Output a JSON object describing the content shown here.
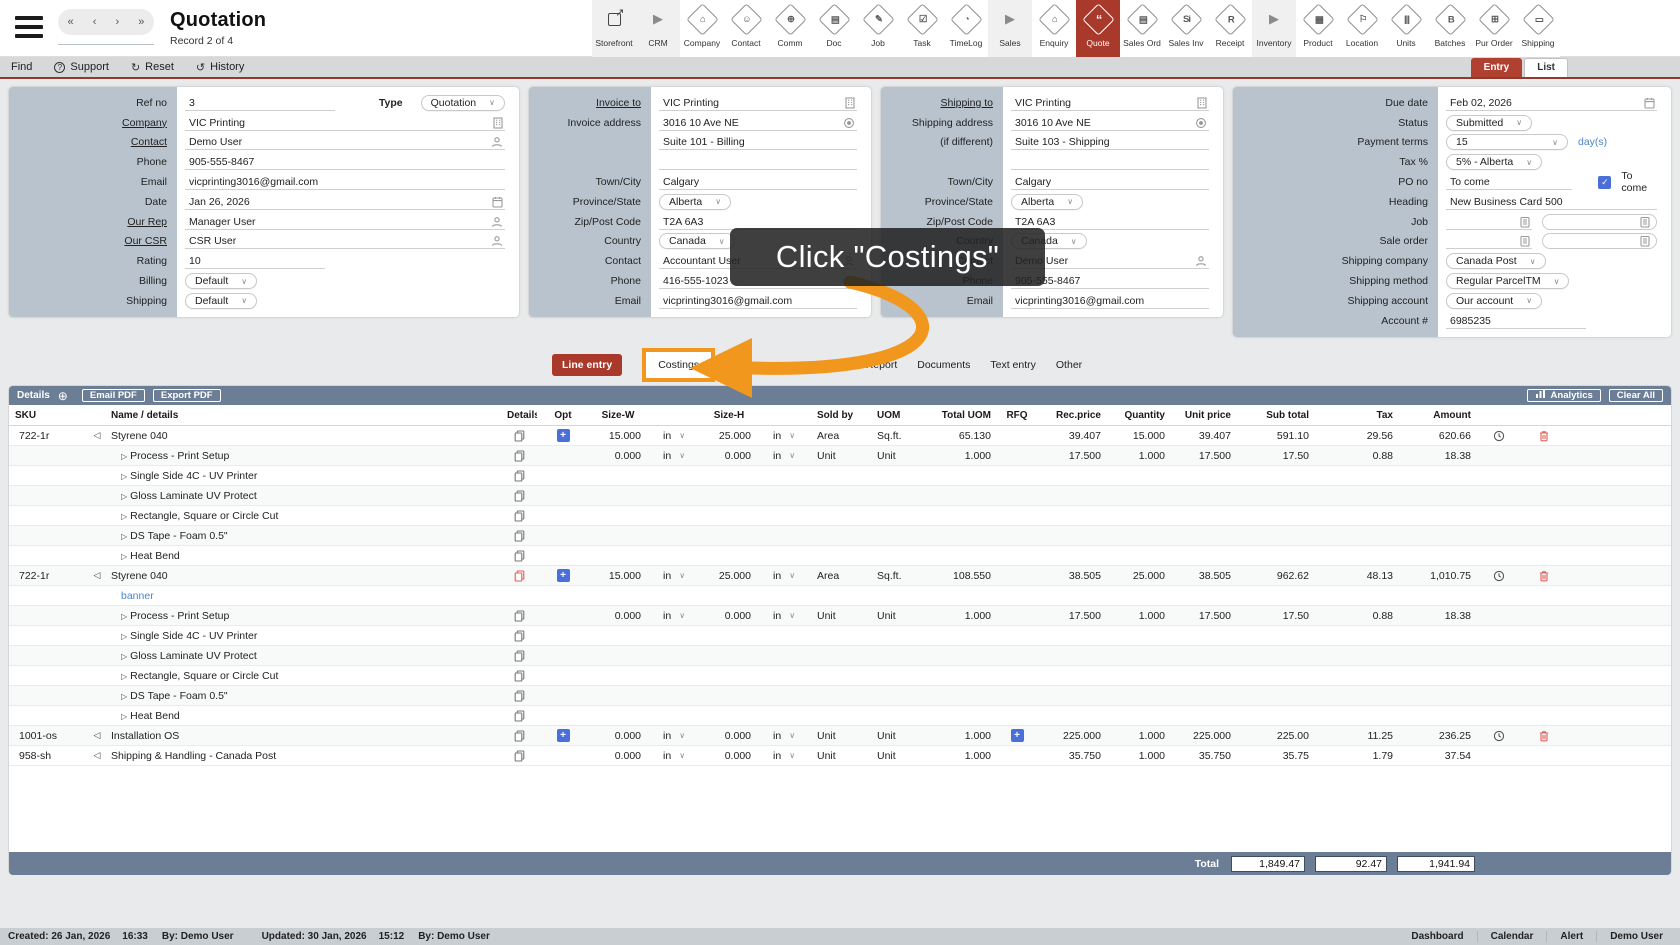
{
  "colors": {
    "accent": "#a8392b",
    "orange": "#f2971e",
    "blue_button": "#4a6fd8",
    "link_blue": "#4a86c8",
    "label_column_bg": "#b9c3cd",
    "bar_bg": "#6b7e95"
  },
  "header": {
    "title": "Quotation",
    "record": "Record 2 of 4",
    "nav_buttons": [
      "«",
      "‹",
      "›",
      "»"
    ],
    "toolbar": [
      {
        "label": "Storefront",
        "glyph": "↗",
        "style": "plain",
        "bg": "gray"
      },
      {
        "label": "CRM",
        "glyph": "▶",
        "style": "arrow",
        "bg": "gray"
      },
      {
        "label": "Company",
        "glyph": "⌂",
        "style": "diamond"
      },
      {
        "label": "Contact",
        "glyph": "☺",
        "style": "diamond"
      },
      {
        "label": "Comm",
        "glyph": "⊕",
        "style": "diamond"
      },
      {
        "label": "Doc",
        "glyph": "▤",
        "style": "diamond"
      },
      {
        "label": "Job",
        "glyph": "✎",
        "style": "diamond"
      },
      {
        "label": "Task",
        "glyph": "☑",
        "style": "diamond"
      },
      {
        "label": "TimeLog",
        "glyph": "◔",
        "style": "diamond"
      },
      {
        "label": "Sales",
        "glyph": "▶",
        "style": "arrow",
        "bg": "gray"
      },
      {
        "label": "Enquiry",
        "glyph": "⌂",
        "style": "diamond"
      },
      {
        "label": "Quote",
        "glyph": "“",
        "style": "diamond",
        "selected": true
      },
      {
        "label": "Sales Ord",
        "glyph": "▤",
        "style": "diamond"
      },
      {
        "label": "Sales Inv",
        "glyph": "Si",
        "style": "diamond"
      },
      {
        "label": "Receipt",
        "glyph": "R",
        "style": "diamond"
      },
      {
        "label": "Inventory",
        "glyph": "▶",
        "style": "arrow",
        "bg": "gray"
      },
      {
        "label": "Product",
        "glyph": "▦",
        "style": "diamond"
      },
      {
        "label": "Location",
        "glyph": "⚐",
        "style": "diamond"
      },
      {
        "label": "Units",
        "glyph": "|||",
        "style": "diamond"
      },
      {
        "label": "Batches",
        "glyph": "B",
        "style": "diamond"
      },
      {
        "label": "Pur Order",
        "glyph": "⊞",
        "style": "diamond"
      },
      {
        "label": "Shipping",
        "glyph": "▭",
        "style": "diamond"
      }
    ]
  },
  "menubar": {
    "items": [
      {
        "label": "Find"
      },
      {
        "label": "Support",
        "icon": "?"
      },
      {
        "label": "Reset",
        "icon": "↻"
      },
      {
        "label": "History",
        "icon": "↺"
      }
    ],
    "view_tabs": [
      {
        "label": "Entry",
        "active": true
      },
      {
        "label": "List"
      }
    ]
  },
  "form": {
    "panels": [
      {
        "name": "general",
        "rows": [
          {
            "kind": "refno",
            "label": "Ref no",
            "value": "3",
            "type_label": "Type",
            "type_value": "Quotation"
          },
          {
            "kind": "text",
            "label": "Company",
            "link": true,
            "value": "VIC Printing",
            "icon": "building"
          },
          {
            "kind": "text",
            "label": "Contact",
            "link": true,
            "value": "Demo User",
            "icon": "person"
          },
          {
            "kind": "text",
            "label": "Phone",
            "value": "905-555-8467"
          },
          {
            "kind": "text",
            "label": "Email",
            "value": "vicprinting3016@gmail.com"
          },
          {
            "kind": "text",
            "label": "Date",
            "value": "Jan 26, 2026",
            "icon": "calendar"
          },
          {
            "kind": "text",
            "label": "Our Rep",
            "link": true,
            "value": "Manager User",
            "icon": "person"
          },
          {
            "kind": "text",
            "label": "Our CSR",
            "link": true,
            "value": "CSR User",
            "icon": "person"
          },
          {
            "kind": "text",
            "label": "Rating",
            "value": "10",
            "short": true
          },
          {
            "kind": "select",
            "label": "Billing",
            "value": "Default"
          },
          {
            "kind": "select",
            "label": "Shipping",
            "value": "Default"
          }
        ]
      },
      {
        "name": "invoice-to",
        "rows": [
          {
            "kind": "text",
            "label": "Invoice to",
            "link": true,
            "value": "VIC Printing",
            "icon": "building"
          },
          {
            "kind": "text",
            "label": "Invoice address",
            "value": "3016 10 Ave NE",
            "icon": "pin"
          },
          {
            "kind": "text",
            "label": "",
            "value": "Suite 101 - Billing"
          },
          {
            "kind": "text",
            "label": "",
            "value": ""
          },
          {
            "kind": "text",
            "label": "Town/City",
            "value": "Calgary"
          },
          {
            "kind": "select",
            "label": "Province/State",
            "value": "Alberta"
          },
          {
            "kind": "text",
            "label": "Zip/Post Code",
            "value": "T2A 6A3"
          },
          {
            "kind": "select",
            "label": "Country",
            "value": "Canada"
          },
          {
            "kind": "text",
            "label": "Contact",
            "value": "Accountant User",
            "icon": "person"
          },
          {
            "kind": "text",
            "label": "Phone",
            "value": "416-555-1023"
          },
          {
            "kind": "text",
            "label": "Email",
            "value": "vicprinting3016@gmail.com"
          }
        ]
      },
      {
        "name": "ship-to",
        "rows": [
          {
            "kind": "text",
            "label": "Shipping to",
            "link": true,
            "value": "VIC Printing",
            "icon": "building"
          },
          {
            "kind": "text",
            "label": "Shipping address",
            "value": "3016 10 Ave NE",
            "icon": "pin"
          },
          {
            "kind": "text",
            "label": "(if different)",
            "value": "Suite 103 - Shipping"
          },
          {
            "kind": "text",
            "label": "",
            "value": ""
          },
          {
            "kind": "text",
            "label": "Town/City",
            "value": "Calgary"
          },
          {
            "kind": "select",
            "label": "Province/State",
            "value": "Alberta"
          },
          {
            "kind": "text",
            "label": "Zip/Post Code",
            "value": "T2A 6A3"
          },
          {
            "kind": "select",
            "label": "Country",
            "value": "Canada"
          },
          {
            "kind": "text",
            "label": "Contact",
            "value": "Demo User",
            "icon": "person"
          },
          {
            "kind": "text",
            "label": "Phone",
            "value": "905-555-8467"
          },
          {
            "kind": "text",
            "label": "Email",
            "value": "vicprinting3016@gmail.com"
          }
        ]
      },
      {
        "name": "terms",
        "rows": [
          {
            "kind": "text",
            "label": "Due date",
            "value": "Feb 02, 2026",
            "icon": "calendar"
          },
          {
            "kind": "select",
            "label": "Status",
            "value": "Submitted"
          },
          {
            "kind": "select",
            "label": "Payment terms",
            "value": "15",
            "wide": true,
            "suffix": "day(s)"
          },
          {
            "kind": "select",
            "label": "Tax %",
            "value": "5% - Alberta"
          },
          {
            "kind": "check",
            "label": "PO no",
            "value": "To come",
            "check_label": "To come",
            "checked": true
          },
          {
            "kind": "text",
            "label": "Heading",
            "value": "New Business Card 500"
          },
          {
            "kind": "double",
            "label": "Job",
            "value": "",
            "icon": "notepad"
          },
          {
            "kind": "double",
            "label": "Sale order",
            "value": "",
            "icon": "notepad"
          },
          {
            "kind": "select",
            "label": "Shipping company",
            "value": "Canada Post"
          },
          {
            "kind": "select",
            "label": "Shipping method",
            "value": "Regular ParcelTM"
          },
          {
            "kind": "select",
            "label": "Shipping account",
            "value": "Our account"
          },
          {
            "kind": "text",
            "label": "Account #",
            "value": "6985235",
            "short": true
          }
        ]
      }
    ]
  },
  "tabs": [
    {
      "label": "Line entry",
      "active": true
    },
    {
      "label": "Costings",
      "highlight": true
    },
    {
      "label": "Wo",
      "obscured": true
    },
    {
      "label": "Production Report"
    },
    {
      "label": "Documents"
    },
    {
      "label": "Text entry"
    },
    {
      "label": "Other"
    }
  ],
  "annotation": {
    "text": "Click \"Costings\""
  },
  "table": {
    "toolbar": {
      "details": "Details",
      "email_pdf": "Email PDF",
      "export_pdf": "Export PDF",
      "analytics": "Analytics",
      "clear_all": "Clear All"
    },
    "columns": [
      "SKU",
      "Name / details",
      "Details",
      "Opt",
      "Size-W",
      "Size-H",
      "Sold by",
      "UOM",
      "Total UOM",
      "RFQ",
      "Rec.price",
      "Quantity",
      "Unit price",
      "Sub total",
      "Tax",
      "Amount"
    ],
    "unit_label": "in",
    "rows": [
      {
        "sku": "722-1r",
        "expand": true,
        "name": "Styrene 040",
        "copy": "gray",
        "opt": true,
        "size_w": "15.000",
        "size_h": "25.000",
        "sold_by": "Area",
        "uom": "Sq.ft.",
        "total_uom": "65.130",
        "rec_price": "39.407",
        "quantity": "15.000",
        "unit_price": "39.407",
        "sub_total": "591.10",
        "tax": "29.56",
        "amount": "620.66",
        "clock": true,
        "trash": true
      },
      {
        "child": true,
        "name": "Process - Print Setup",
        "copy": "gray",
        "size_w": "0.000",
        "size_h": "0.000",
        "sold_by": "Unit",
        "uom": "Unit",
        "total_uom": "1.000",
        "rec_price": "17.500",
        "quantity": "1.000",
        "unit_price": "17.500",
        "sub_total": "17.50",
        "tax": "0.88",
        "amount": "18.38"
      },
      {
        "child": true,
        "name": "Single Side 4C - UV Printer",
        "copy": "gray"
      },
      {
        "child": true,
        "name": "Gloss Laminate UV Protect",
        "copy": "gray"
      },
      {
        "child": true,
        "name": "Rectangle, Square or Circle Cut",
        "copy": "gray"
      },
      {
        "child": true,
        "name": "DS Tape - Foam 0.5\"",
        "copy": "gray"
      },
      {
        "child": true,
        "name": "Heat Bend",
        "copy": "gray"
      },
      {
        "sku": "722-1r",
        "expand": true,
        "name": "Styrene 040",
        "copy": "red",
        "opt": true,
        "size_w": "15.000",
        "size_h": "25.000",
        "sold_by": "Area",
        "uom": "Sq.ft.",
        "total_uom": "108.550",
        "rec_price": "38.505",
        "quantity": "25.000",
        "unit_price": "38.505",
        "sub_total": "962.62",
        "tax": "48.13",
        "amount": "1,010.75",
        "clock": true,
        "trash": true
      },
      {
        "note": true,
        "name": "banner"
      },
      {
        "child": true,
        "name": "Process - Print Setup",
        "copy": "gray",
        "size_w": "0.000",
        "size_h": "0.000",
        "sold_by": "Unit",
        "uom": "Unit",
        "total_uom": "1.000",
        "rec_price": "17.500",
        "quantity": "1.000",
        "unit_price": "17.500",
        "sub_total": "17.50",
        "tax": "0.88",
        "amount": "18.38"
      },
      {
        "child": true,
        "name": "Single Side 4C - UV Printer",
        "copy": "gray"
      },
      {
        "child": true,
        "name": "Gloss Laminate UV Protect",
        "copy": "gray"
      },
      {
        "child": true,
        "name": "Rectangle, Square or Circle Cut",
        "copy": "gray"
      },
      {
        "child": true,
        "name": "DS Tape - Foam 0.5\"",
        "copy": "gray"
      },
      {
        "child": true,
        "name": "Heat Bend",
        "copy": "gray"
      },
      {
        "sku": "1001-os",
        "expand": true,
        "name": "Installation OS",
        "copy": "gray",
        "opt": true,
        "size_w": "0.000",
        "size_h": "0.000",
        "sold_by": "Unit",
        "uom": "Unit",
        "total_uom": "1.000",
        "rfq": true,
        "rec_price": "225.000",
        "quantity": "1.000",
        "unit_price": "225.000",
        "sub_total": "225.00",
        "tax": "11.25",
        "amount": "236.25",
        "clock": true,
        "trash": true
      },
      {
        "sku": "958-sh",
        "expand": true,
        "name": "Shipping & Handling - Canada Post",
        "copy": "gray",
        "size_w": "0.000",
        "size_h": "0.000",
        "sold_by": "Unit",
        "uom": "Unit",
        "total_uom": "1.000",
        "rec_price": "35.750",
        "quantity": "1.000",
        "unit_price": "35.750",
        "sub_total": "35.75",
        "tax": "1.79",
        "amount": "37.54"
      }
    ],
    "totals": {
      "label": "Total",
      "sub_total": "1,849.47",
      "tax": "92.47",
      "amount": "1,941.94"
    }
  },
  "footer": {
    "left": [
      "Created: 26 Jan, 2026",
      "16:33",
      "By: Demo User",
      "Updated: 30 Jan, 2026",
      "15:12",
      "By: Demo User"
    ],
    "right": [
      "Dashboard",
      "Calendar",
      "Alert",
      "Demo User"
    ]
  }
}
